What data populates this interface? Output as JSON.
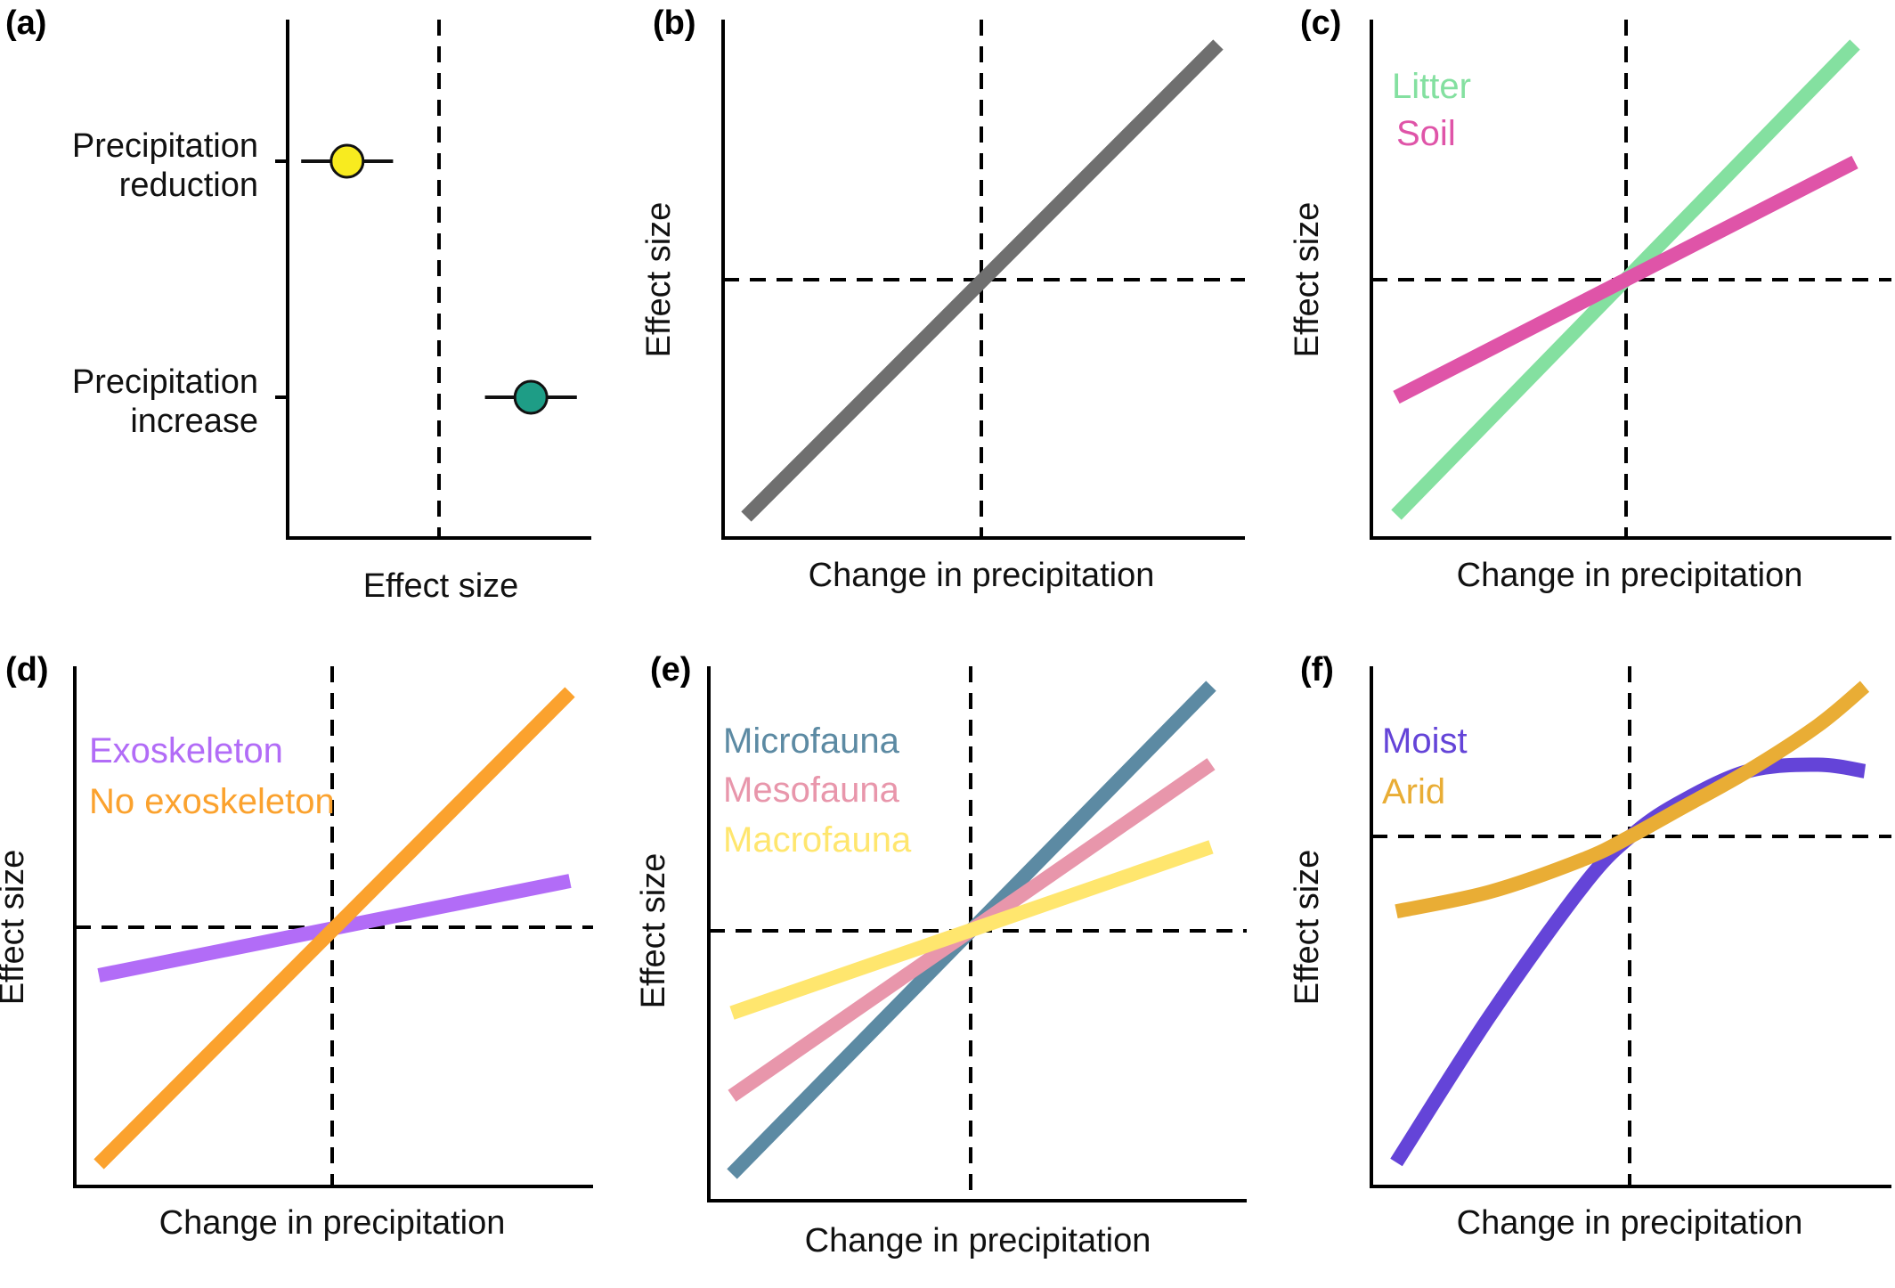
{
  "chart_data": [
    {
      "panel": "(a)",
      "type": "scatter",
      "xlabel": "Effect size",
      "ylabel": "",
      "categories": [
        "Precipitation\nreduction",
        "Precipitation\nincrease"
      ],
      "reference_line": {
        "x": 0
      },
      "points": [
        {
          "category": "Precipitation\nreduction",
          "value": -0.6,
          "error": 0.3,
          "color": "#f8eb1f"
        },
        {
          "category": "Precipitation\nincrease",
          "value": 0.6,
          "error": 0.3,
          "color": "#1e9d86"
        }
      ]
    },
    {
      "panel": "(b)",
      "type": "line",
      "xlabel": "Change in precipitation",
      "ylabel": "Effect size",
      "reference_lines": {
        "x": 0,
        "y": 0
      },
      "series": [
        {
          "name": "",
          "color": "#6f6f6f",
          "x": [
            -1,
            1
          ],
          "y": [
            -1,
            1
          ]
        }
      ]
    },
    {
      "panel": "(c)",
      "type": "line",
      "xlabel": "Change in precipitation",
      "ylabel": "Effect size",
      "reference_lines": {
        "x": 0,
        "y": 0
      },
      "series": [
        {
          "name": "Litter",
          "color": "#84e0a0",
          "x": [
            -1,
            1
          ],
          "y": [
            -1,
            1
          ]
        },
        {
          "name": "Soil",
          "color": "#df54a8",
          "x": [
            -1,
            1
          ],
          "y": [
            -0.5,
            0.5
          ]
        }
      ]
    },
    {
      "panel": "(d)",
      "type": "line",
      "xlabel": "Change in precipitation",
      "ylabel": "Effect size",
      "reference_lines": {
        "x": 0,
        "y": 0
      },
      "series": [
        {
          "name": "Exoskeleton",
          "color": "#b26cf7",
          "x": [
            -1,
            1
          ],
          "y": [
            -0.2,
            0.2
          ]
        },
        {
          "name": "No exoskeleton",
          "color": "#fba22e",
          "x": [
            -1,
            1
          ],
          "y": [
            -1,
            1
          ]
        }
      ]
    },
    {
      "panel": "(e)",
      "type": "line",
      "xlabel": "Change in precipitation",
      "ylabel": "Effect size",
      "reference_lines": {
        "x": 0,
        "y": 0
      },
      "series": [
        {
          "name": "Microfauna",
          "color": "#5c8aa3",
          "x": [
            -1,
            1
          ],
          "y": [
            -1,
            1
          ]
        },
        {
          "name": "Mesofauna",
          "color": "#e896ab",
          "x": [
            -1,
            1
          ],
          "y": [
            -0.68,
            0.68
          ]
        },
        {
          "name": "Macrofauna",
          "color": "#ffe66e",
          "x": [
            -1,
            1
          ],
          "y": [
            -0.34,
            0.34
          ]
        }
      ]
    },
    {
      "panel": "(f)",
      "type": "line",
      "xlabel": "Change in precipitation",
      "ylabel": "Effect size",
      "reference_lines": {
        "x": 0,
        "y": 0
      },
      "series": [
        {
          "name": "Moist",
          "color": "#6444d8",
          "x": [
            -1,
            -0.6,
            -0.2,
            0,
            0.2,
            0.5,
            0.8,
            1
          ],
          "y": [
            -1.0,
            -0.55,
            -0.15,
            0.0,
            0.1,
            0.2,
            0.22,
            0.2
          ]
        },
        {
          "name": "Arid",
          "color": "#e9ad35",
          "x": [
            -1,
            -0.6,
            -0.2,
            0,
            0.2,
            0.5,
            0.8,
            1
          ],
          "y": [
            -0.23,
            -0.17,
            -0.07,
            0.0,
            0.08,
            0.2,
            0.34,
            0.46
          ]
        }
      ]
    }
  ]
}
